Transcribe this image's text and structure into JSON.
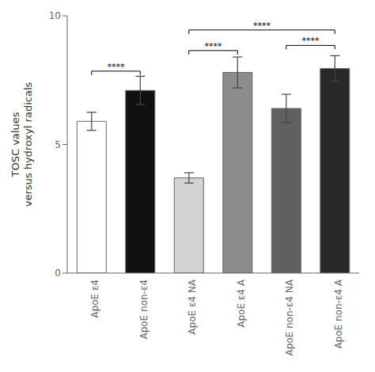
{
  "chart_data": {
    "type": "bar",
    "categories": [
      "ApoE ε4",
      "ApoE non-ε4",
      "ApoE ε4 NA",
      "ApoE ε4 A",
      "ApoE non-ε4 NA",
      "ApoE non-ε4 A"
    ],
    "values": [
      5.9,
      7.1,
      3.7,
      7.8,
      6.4,
      7.95
    ],
    "errors": [
      0.35,
      0.55,
      0.2,
      0.6,
      0.55,
      0.5
    ],
    "colors": [
      "#ffffff",
      "#111111",
      "#d3d3d3",
      "#8c8c8c",
      "#606060",
      "#282828"
    ],
    "ylabel": "TOSC values\nversus hydroxyl radicals",
    "ylim": [
      0,
      10
    ],
    "yticks": [
      0,
      5,
      10
    ],
    "grid": false,
    "annotations": [
      {
        "from": "ApoE ε4",
        "to": "ApoE non-ε4",
        "y": 7.85,
        "label": "****"
      },
      {
        "from": "ApoE ε4 NA",
        "to": "ApoE ε4 A",
        "y": 8.65,
        "label": "****"
      },
      {
        "from": "ApoE non-ε4 NA",
        "to": "ApoE non-ε4 A",
        "y": 8.85,
        "label": "****"
      },
      {
        "from": "ApoE ε4 NA",
        "to": "ApoE non-ε4 A",
        "y": 9.45,
        "label": "****"
      }
    ]
  }
}
